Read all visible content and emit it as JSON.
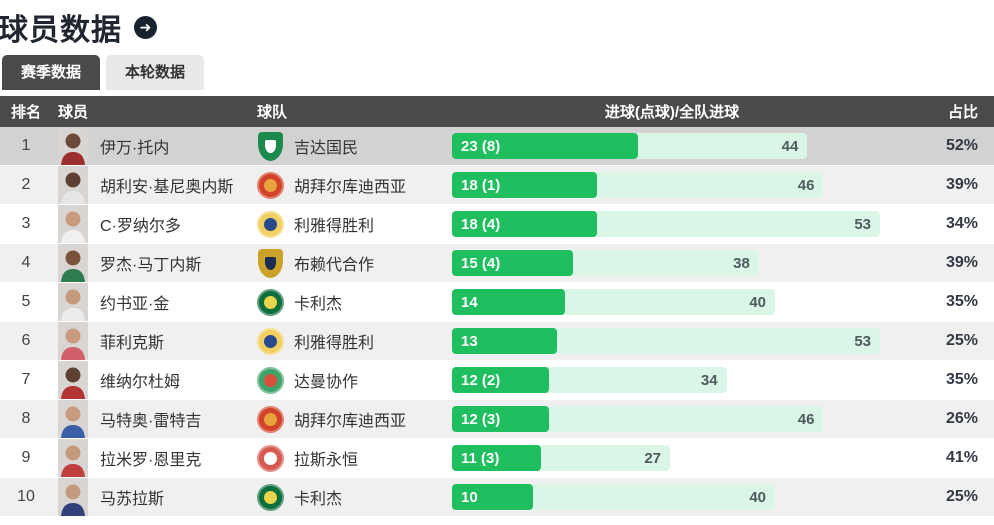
{
  "page": {
    "title": "球员数据",
    "title_arrow": "➜"
  },
  "tabs": [
    {
      "label": "赛季数据",
      "active": true
    },
    {
      "label": "本轮数据",
      "active": false
    }
  ],
  "table": {
    "columns": {
      "rank": "排名",
      "player": "球员",
      "team": "球队",
      "goals": "进球(点球)/全队进球",
      "share": "占比"
    },
    "max_team_goals": 53,
    "rows": [
      {
        "rank": 1,
        "player": "伊万·托内",
        "team": "吉达国民",
        "goals": 23,
        "goals_label": "23 (8)",
        "team_goals": 44,
        "share": "52%",
        "highlight": true,
        "avatar": {
          "jersey": "#9c2f2f",
          "skin": "#6b4a3a"
        },
        "logo": {
          "shape": "shield",
          "c1": "#1c8a4c",
          "c2": "#ffffff"
        }
      },
      {
        "rank": 2,
        "player": "胡利安·基尼奥内斯",
        "team": "胡拜尔库迪西亚",
        "goals": 18,
        "goals_label": "18 (1)",
        "team_goals": 46,
        "share": "39%",
        "highlight": false,
        "avatar": {
          "jersey": "#e6e6e6",
          "skin": "#5d4234"
        },
        "logo": {
          "shape": "circle",
          "c1": "#d3422a",
          "c2": "#e8a33d"
        }
      },
      {
        "rank": 3,
        "player": "C·罗纳尔多",
        "team": "利雅得胜利",
        "goals": 18,
        "goals_label": "18 (4)",
        "team_goals": 53,
        "share": "34%",
        "highlight": false,
        "avatar": {
          "jersey": "#f0f0f0",
          "skin": "#c99b7e"
        },
        "logo": {
          "shape": "circle",
          "c1": "#f2cf61",
          "c2": "#274b8d"
        }
      },
      {
        "rank": 4,
        "player": "罗杰·马丁内斯",
        "team": "布赖代合作",
        "goals": 15,
        "goals_label": "15 (4)",
        "team_goals": 38,
        "share": "39%",
        "highlight": false,
        "avatar": {
          "jersey": "#2f7d4f",
          "skin": "#7a523c"
        },
        "logo": {
          "shape": "shield",
          "c1": "#c9a227",
          "c2": "#1b2d50"
        }
      },
      {
        "rank": 5,
        "player": "约书亚·金",
        "team": "卡利杰",
        "goals": 14,
        "goals_label": "14",
        "team_goals": 40,
        "share": "35%",
        "highlight": false,
        "avatar": {
          "jersey": "#ececec",
          "skin": "#c49a7a"
        },
        "logo": {
          "shape": "circle",
          "c1": "#0e6e3c",
          "c2": "#e9d44e"
        }
      },
      {
        "rank": 6,
        "player": "菲利克斯",
        "team": "利雅得胜利",
        "goals": 13,
        "goals_label": "13",
        "team_goals": 53,
        "share": "25%",
        "highlight": false,
        "avatar": {
          "jersey": "#d2606a",
          "skin": "#c99b7e"
        },
        "logo": {
          "shape": "circle",
          "c1": "#f2cf61",
          "c2": "#274b8d"
        }
      },
      {
        "rank": 7,
        "player": "维纳尔杜姆",
        "team": "达曼协作",
        "goals": 12,
        "goals_label": "12 (2)",
        "team_goals": 34,
        "share": "35%",
        "highlight": false,
        "avatar": {
          "jersey": "#b23434",
          "skin": "#5d4234"
        },
        "logo": {
          "shape": "circle",
          "c1": "#3fa46a",
          "c2": "#d94f3d"
        }
      },
      {
        "rank": 8,
        "player": "马特奥·雷特吉",
        "team": "胡拜尔库迪西亚",
        "goals": 12,
        "goals_label": "12 (3)",
        "team_goals": 46,
        "share": "26%",
        "highlight": false,
        "avatar": {
          "jersey": "#3a5fa8",
          "skin": "#c99b7e"
        },
        "logo": {
          "shape": "circle",
          "c1": "#d3422a",
          "c2": "#e8a33d"
        }
      },
      {
        "rank": 9,
        "player": "拉米罗·恩里克",
        "team": "拉斯永恒",
        "goals": 11,
        "goals_label": "11 (3)",
        "team_goals": 27,
        "share": "41%",
        "highlight": false,
        "avatar": {
          "jersey": "#c04040",
          "skin": "#c49a7a"
        },
        "logo": {
          "shape": "circle",
          "c1": "#d65a4f",
          "c2": "#ffffff"
        }
      },
      {
        "rank": 10,
        "player": "马苏拉斯",
        "team": "卡利杰",
        "goals": 10,
        "goals_label": "10",
        "team_goals": 40,
        "share": "25%",
        "highlight": false,
        "avatar": {
          "jersey": "#31417a",
          "skin": "#c49a7e"
        },
        "logo": {
          "shape": "circle",
          "c1": "#0e6e3c",
          "c2": "#e9d44e"
        }
      }
    ]
  },
  "colors": {
    "accent_green": "#1fbe5e",
    "track_green": "#d9f6e6",
    "header_bg": "#4a4a4a",
    "highlight_row": "#d2d2d2",
    "even_row": "#f0f0f0"
  }
}
